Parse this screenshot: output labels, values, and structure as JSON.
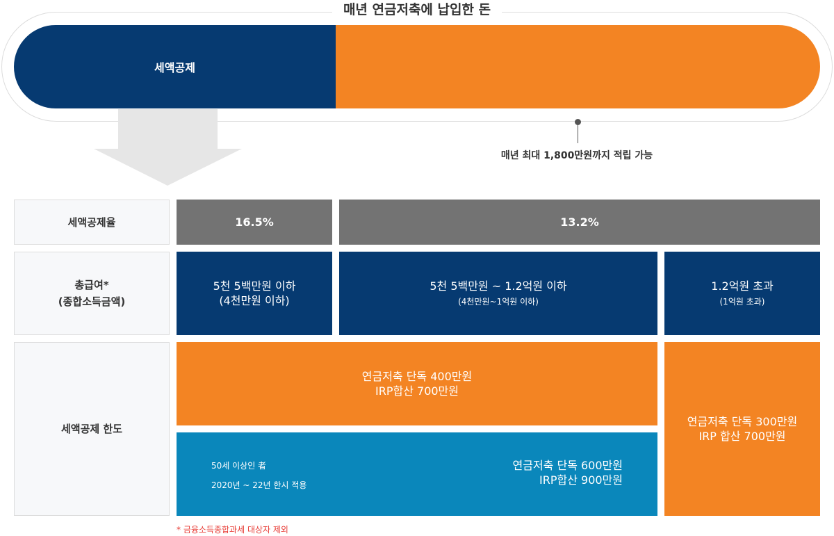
{
  "header": {
    "title": "매년 연금저축에 납입한 돈",
    "bar_left_label": "세액공제",
    "max_note": "매년 최대 1,800만원까지 적립 가능"
  },
  "colors": {
    "navy": "#063a71",
    "orange": "#f38423",
    "gray": "#737373",
    "teal": "#0a87bb"
  },
  "icons": {
    "arrow": "down-arrow-icon"
  },
  "table": {
    "rate": {
      "label": "세액공제율",
      "value_low": "16.5%",
      "value_high": "13.2%"
    },
    "income": {
      "label_line1": "총급여*",
      "label_line2": "(종합소득금액)",
      "col1_main": "5천 5백만원 이하",
      "col1_sub": "(4천만원 이하)",
      "col2_main": "5천 5백만원 ~ 1.2억원 이하",
      "col2_sub": "(4천만원~1억원 이하)",
      "col3_main": "1.2억원 초과",
      "col3_sub": "(1억원 초과)"
    },
    "limit": {
      "label": "세액공제 한도",
      "orange_line1": "연금저축 단독 400만원",
      "orange_line2": "IRP합산 700만원",
      "teal_note1": "50세 이상인 者",
      "teal_note2": "2020년 ~ 22년 한시 적용",
      "teal_line1": "연금저축 단독 600만원",
      "teal_line2": "IRP합산 900만원",
      "right_line1": "연금저축 단독 300만원",
      "right_line2": "IRP 합산 700만원"
    }
  },
  "footnote": "* 금융소득종합과세 대상자 제외"
}
